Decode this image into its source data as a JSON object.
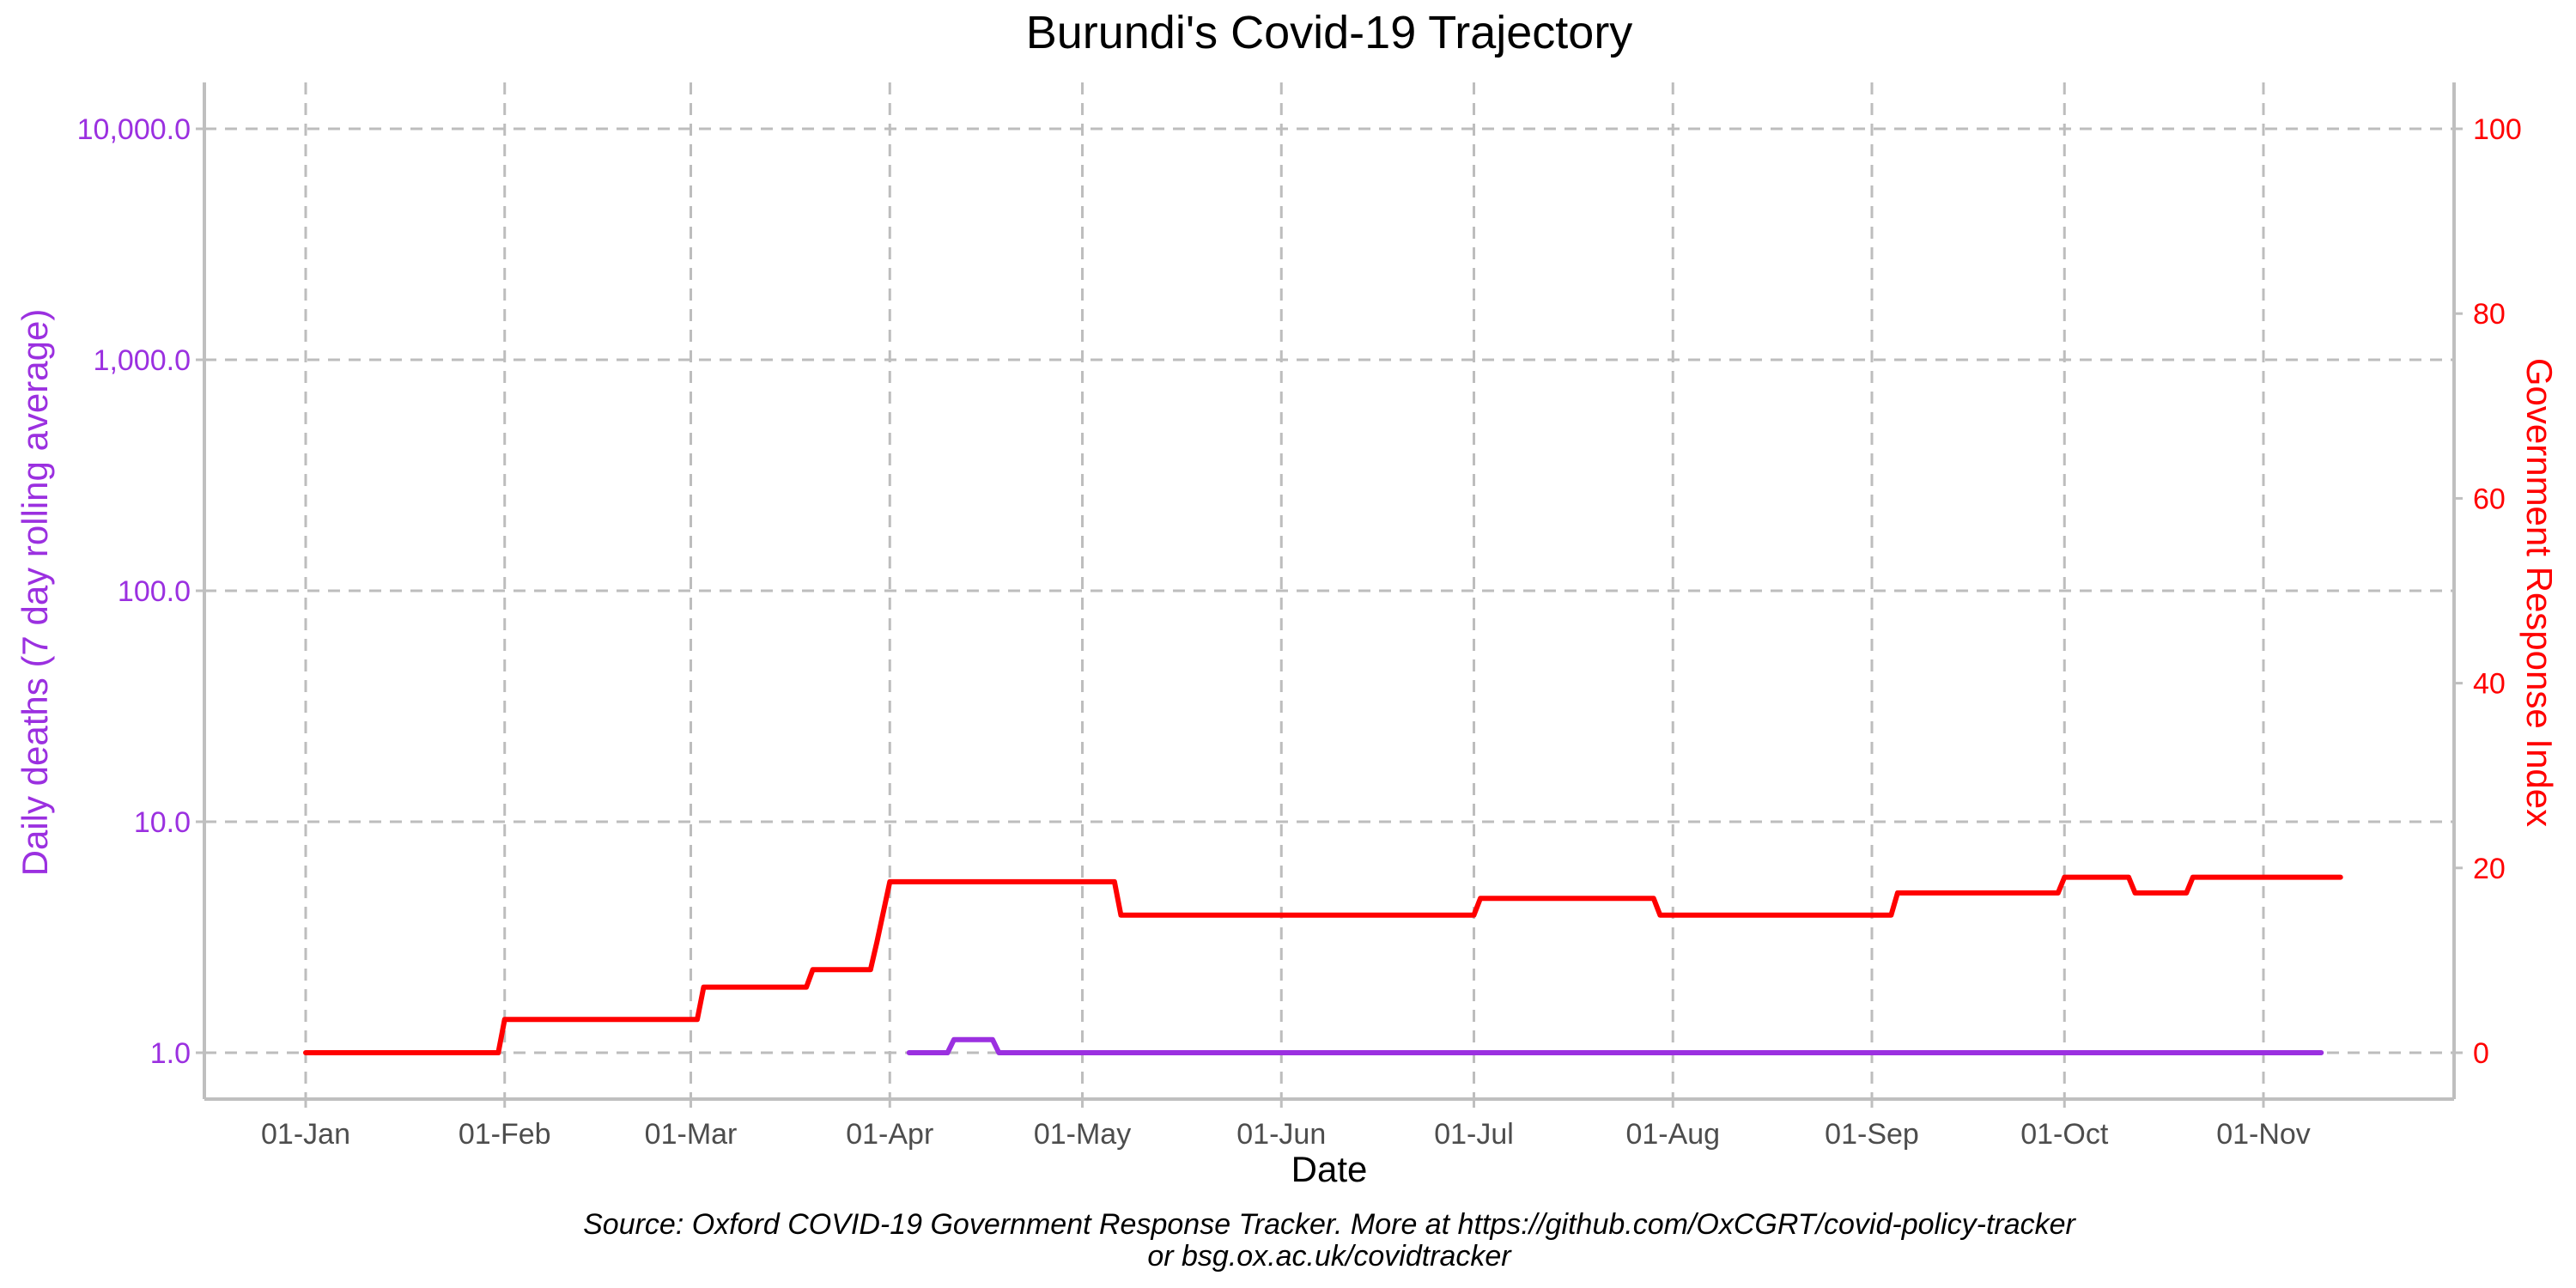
{
  "chart_data": {
    "type": "line",
    "title": "Burundi's Covid-19 Trajectory",
    "xlabel": "Date",
    "ylabel_left": "Daily deaths (7 day rolling average)",
    "ylabel_right": "Government Response Index",
    "caption_line1": "Source: Oxford COVID-19 Government Response Tracker. More at https://github.com/OxCGRT/covid-policy-tracker",
    "caption_line2": "or bsg.ox.ac.uk/covidtracker",
    "x_ticks": [
      "01-Jan",
      "01-Feb",
      "01-Mar",
      "01-Apr",
      "01-May",
      "01-Jun",
      "01-Jul",
      "01-Aug",
      "01-Sep",
      "01-Oct",
      "01-Nov"
    ],
    "y_left_ticks": [
      "1.0",
      "10.0",
      "100.0",
      "1,000.0",
      "10,000.0"
    ],
    "y_left_scale": "log",
    "y_left_range": [
      1,
      10000
    ],
    "y_right_ticks": [
      "0",
      "20",
      "40",
      "60",
      "80",
      "100"
    ],
    "y_right_range": [
      0,
      100
    ],
    "x_range": [
      "2020-01-01",
      "2020-11-15"
    ],
    "grid": true,
    "colors": {
      "deaths": "#9b30e0",
      "index": "#ff0000",
      "grid": "#bdbdbd",
      "axis": "#bfbfbf"
    },
    "series": [
      {
        "axis": "right",
        "points": [
          [
            "2020-01-01",
            0
          ],
          [
            "2020-01-31",
            0
          ],
          [
            "2020-02-01",
            3.6
          ],
          [
            "2020-03-02",
            3.6
          ],
          [
            "2020-03-03",
            7.1
          ],
          [
            "2020-03-19",
            7.1
          ],
          [
            "2020-03-20",
            9.0
          ],
          [
            "2020-03-29",
            9.0
          ],
          [
            "2020-03-30",
            12.0
          ],
          [
            "2020-04-01",
            18.5
          ],
          [
            "2020-05-06",
            18.5
          ],
          [
            "2020-05-07",
            14.9
          ],
          [
            "2020-07-01",
            14.9
          ],
          [
            "2020-07-02",
            16.7
          ],
          [
            "2020-07-29",
            16.7
          ],
          [
            "2020-07-30",
            14.9
          ],
          [
            "2020-09-04",
            14.9
          ],
          [
            "2020-09-05",
            17.3
          ],
          [
            "2020-09-30",
            17.3
          ],
          [
            "2020-10-01",
            19.0
          ],
          [
            "2020-10-11",
            19.0
          ],
          [
            "2020-10-12",
            17.3
          ],
          [
            "2020-10-20",
            17.3
          ],
          [
            "2020-10-21",
            19.0
          ],
          [
            "2020-11-13",
            19.0
          ]
        ]
      },
      {
        "axis": "left",
        "points": [
          [
            "2020-04-04",
            1.0
          ],
          [
            "2020-04-10",
            1.0
          ],
          [
            "2020-04-11",
            1.14
          ],
          [
            "2020-04-17",
            1.14
          ],
          [
            "2020-04-18",
            1.0
          ],
          [
            "2020-11-10",
            1.0
          ]
        ]
      }
    ]
  }
}
